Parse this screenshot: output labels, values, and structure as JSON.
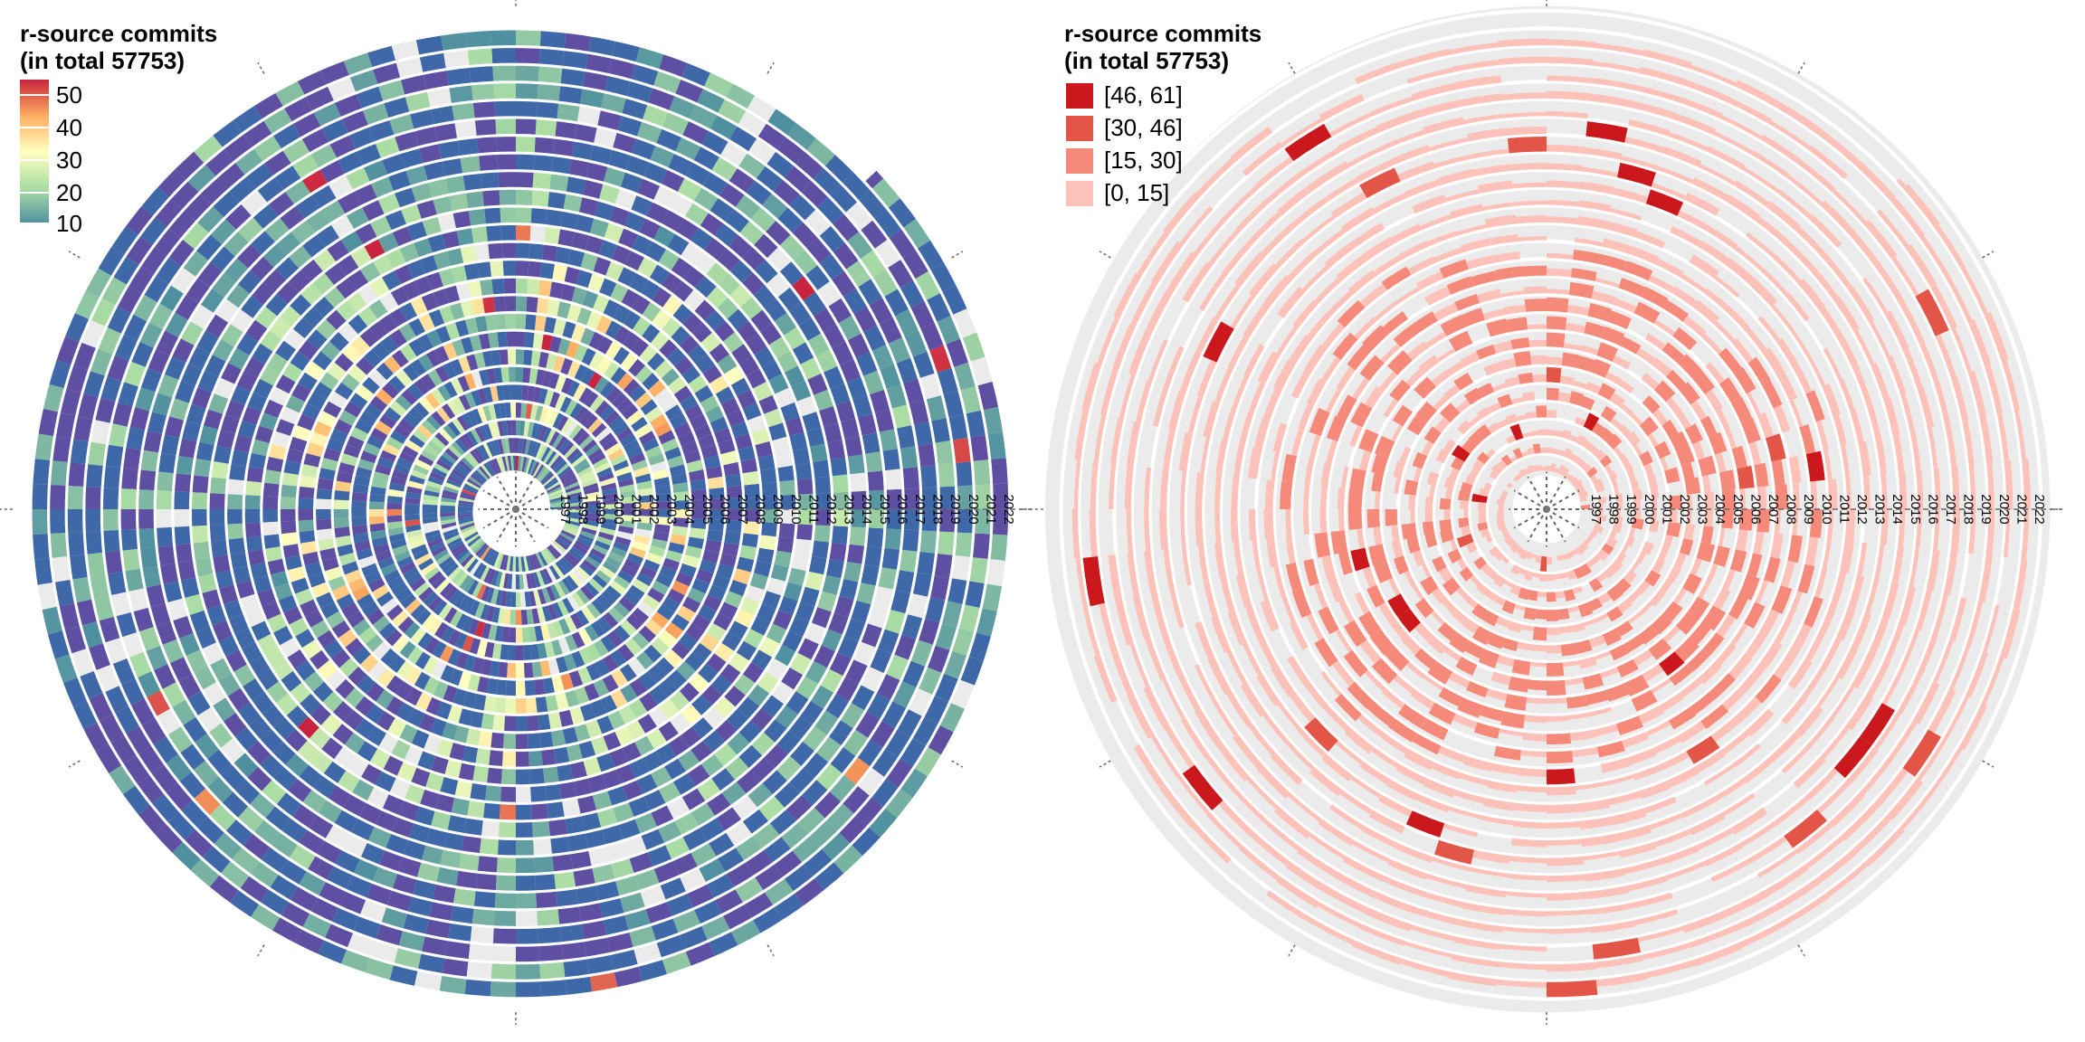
{
  "chart_data": [
    {
      "type": "heatmap",
      "layout": "spiral",
      "title": "r-source commits\n(in total 57753)",
      "title_lines": [
        "r-source commits",
        "(in total 57753)"
      ],
      "years": [
        "1997",
        "1998",
        "1999",
        "2000",
        "2001",
        "2002",
        "2003",
        "2004",
        "2005",
        "2006",
        "2007",
        "2008",
        "2009",
        "2010",
        "2011",
        "2012",
        "2013",
        "2014",
        "2015",
        "2016",
        "2017",
        "2018",
        "2019",
        "2020",
        "2021",
        "2022"
      ],
      "direction": "counterclockwise from 3 o'clock, one turn per year",
      "legend": {
        "type": "colorbar",
        "ticks": [
          "10",
          "20",
          "30",
          "40",
          "50"
        ],
        "range": [
          10,
          50
        ]
      },
      "colors": {
        "low": "#5e4fa2",
        "c10": "#4e8fa0",
        "c20": "#abdda4",
        "c30": "#ffffbf",
        "c40": "#fdae61",
        "c50": "#c9243f",
        "missing": "#ebebeb"
      }
    },
    {
      "type": "bar",
      "layout": "spiral",
      "title_lines": [
        "r-source commits",
        "(in total 57753)"
      ],
      "years": [
        "1997",
        "1998",
        "1999",
        "2000",
        "2001",
        "2002",
        "2003",
        "2004",
        "2005",
        "2006",
        "2007",
        "2008",
        "2009",
        "2010",
        "2011",
        "2012",
        "2013",
        "2014",
        "2015",
        "2016",
        "2017",
        "2018",
        "2019",
        "2020",
        "2021",
        "2022"
      ],
      "legend": {
        "type": "bins",
        "bins": [
          {
            "label": "[46, 61]",
            "color": "#cb181d"
          },
          {
            "label": "[30, 46]",
            "color": "#e35647"
          },
          {
            "label": "[15, 30]",
            "color": "#f58a7a"
          },
          {
            "label": "[0, 15]",
            "color": "#fcc1b8"
          }
        ]
      },
      "colors": {
        "track": "#ebebeb"
      }
    }
  ]
}
